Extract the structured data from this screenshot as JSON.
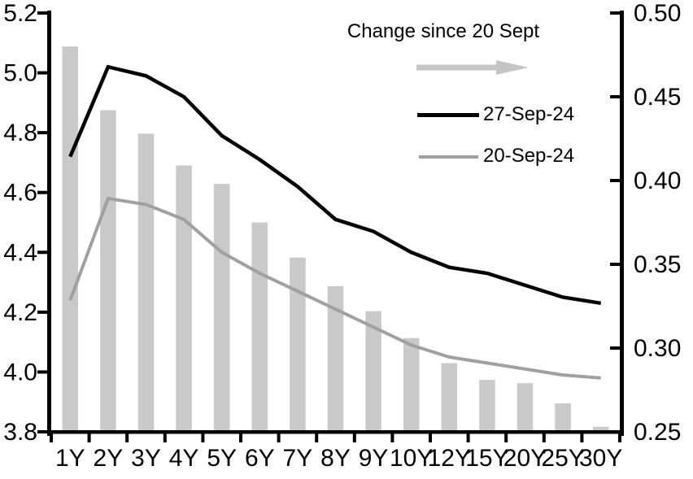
{
  "chart_data": {
    "type": "combo",
    "title": "",
    "categories": [
      "1Y",
      "2Y",
      "3Y",
      "4Y",
      "5Y",
      "6Y",
      "7Y",
      "8Y",
      "9Y",
      "10Y",
      "12Y",
      "15Y",
      "20Y",
      "25Y",
      "30Y"
    ],
    "series": [
      {
        "name": "Change since 20 Sept",
        "type": "bar",
        "axis": "right",
        "values": [
          0.48,
          0.442,
          0.428,
          0.409,
          0.398,
          0.375,
          0.354,
          0.337,
          0.322,
          0.306,
          0.291,
          0.281,
          0.279,
          0.267,
          0.253
        ]
      },
      {
        "name": "27-Sep-24",
        "type": "line",
        "axis": "left",
        "values": [
          4.72,
          5.02,
          4.99,
          4.92,
          4.79,
          4.71,
          4.62,
          4.51,
          4.47,
          4.4,
          4.35,
          4.33,
          4.29,
          4.25,
          4.23
        ]
      },
      {
        "name": "20-Sep-24",
        "type": "line",
        "axis": "left",
        "values": [
          4.24,
          4.58,
          4.56,
          4.51,
          4.4,
          4.33,
          4.27,
          4.21,
          4.15,
          4.09,
          4.05,
          4.03,
          4.01,
          3.99,
          3.98
        ]
      }
    ],
    "left_axis": {
      "min": 3.8,
      "max": 5.2,
      "step": 0.2,
      "tick_labels": [
        "3.8",
        "4.0",
        "4.2",
        "4.4",
        "4.6",
        "4.8",
        "5.0",
        "5.2"
      ]
    },
    "right_axis": {
      "min": 0.25,
      "max": 0.5,
      "step": 0.05,
      "tick_labels": [
        "0.25",
        "0.30",
        "0.35",
        "0.40",
        "0.45",
        "0.50"
      ]
    },
    "grid": false,
    "legend_position": "top-right-inside"
  },
  "legend": {
    "title": "Change since 20 Sept",
    "arrow_icon": "right-arrow",
    "items": [
      {
        "label": "27-Sep-24",
        "series": "27-Sep-24"
      },
      {
        "label": "20-Sep-24",
        "series": "20-Sep-24"
      }
    ]
  },
  "colors": {
    "background": "#FFFFFF",
    "axis": "#000000",
    "text": "#000000",
    "bar": "#C9C9C9",
    "line_27sep": "#000000",
    "line_20sep": "#A0A0A0",
    "arrow": "#C5C5C5"
  }
}
